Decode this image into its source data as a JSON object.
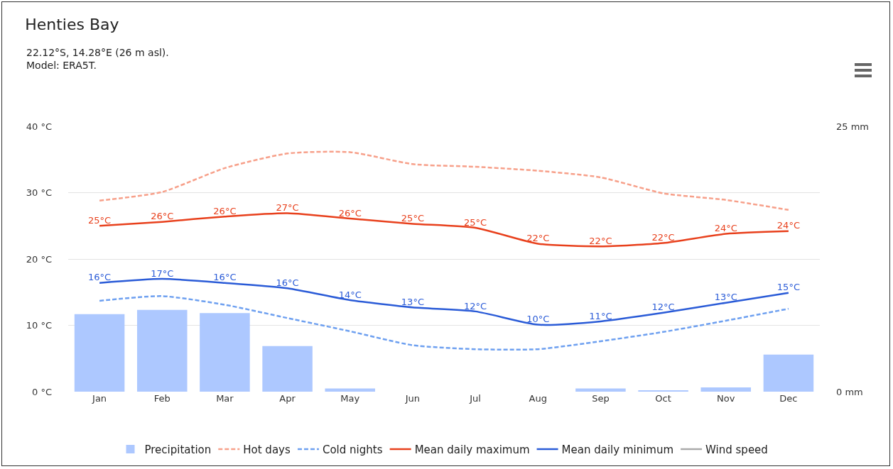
{
  "chart_data": {
    "type": "line",
    "title": "Henties Bay",
    "subtitle": "22.12°S, 14.28°E (26 m asl).\nModel: ERA5T.",
    "categories": [
      "Jan",
      "Feb",
      "Mar",
      "Apr",
      "May",
      "Jun",
      "Jul",
      "Aug",
      "Sep",
      "Oct",
      "Nov",
      "Dec"
    ],
    "series": [
      {
        "name": "Precipitation",
        "type": "bar",
        "axis": "y2",
        "color": "#adc8ff",
        "values": [
          7.3,
          7.7,
          7.4,
          4.3,
          0.3,
          0,
          0,
          0,
          0.3,
          0.1,
          0.4,
          3.5
        ]
      },
      {
        "name": "Hot days",
        "line_style": "dashed",
        "color": "#f7a08a",
        "values": [
          28.8,
          30.1,
          33.7,
          35.9,
          36.1,
          34.3,
          33.9,
          33.3,
          32.3,
          29.9,
          28.9,
          27.4
        ]
      },
      {
        "name": "Cold nights",
        "line_style": "dashed",
        "color": "#6ea0f0",
        "values": [
          13.7,
          14.4,
          13.1,
          11.1,
          9.1,
          7.0,
          6.4,
          6.4,
          7.6,
          9.0,
          10.7,
          12.5
        ]
      },
      {
        "name": "Mean daily maximum",
        "line_style": "solid",
        "color": "#e8401c",
        "values": [
          25.0,
          25.6,
          26.4,
          26.9,
          26.1,
          25.3,
          24.7,
          22.3,
          21.9,
          22.4,
          23.8,
          24.2
        ],
        "value_labels": [
          "25°C",
          "26°C",
          "26°C",
          "27°C",
          "26°C",
          "25°C",
          "25°C",
          "22°C",
          "22°C",
          "22°C",
          "24°C",
          "24°C"
        ]
      },
      {
        "name": "Mean daily minimum",
        "line_style": "solid",
        "color": "#2a5bd7",
        "values": [
          16.4,
          17.0,
          16.4,
          15.6,
          13.8,
          12.7,
          12.1,
          10.1,
          10.6,
          11.9,
          13.4,
          14.9
        ],
        "value_labels": [
          "16°C",
          "17°C",
          "16°C",
          "16°C",
          "14°C",
          "13°C",
          "12°C",
          "10°C",
          "11°C",
          "12°C",
          "13°C",
          "15°C"
        ]
      },
      {
        "name": "Wind speed",
        "line_style": "solid",
        "color": "#aaaaaa",
        "values": [
          null,
          null,
          null,
          null,
          null,
          null,
          null,
          null,
          null,
          null,
          null,
          null
        ]
      }
    ],
    "ylim": [
      0,
      40
    ],
    "yticks": [
      {
        "value": 0,
        "label": "0 °C"
      },
      {
        "value": 10,
        "label": "10 °C"
      },
      {
        "value": 20,
        "label": "20 °C"
      },
      {
        "value": 30,
        "label": "30 °C"
      },
      {
        "value": 40,
        "label": "40 °C"
      }
    ],
    "y2lim": [
      0,
      25
    ],
    "y2ticks": [
      {
        "value": 0,
        "label": "0 mm"
      },
      {
        "value": 25,
        "label": "25 mm"
      }
    ],
    "grid": "y",
    "legend": "bottom",
    "marker": "none"
  }
}
